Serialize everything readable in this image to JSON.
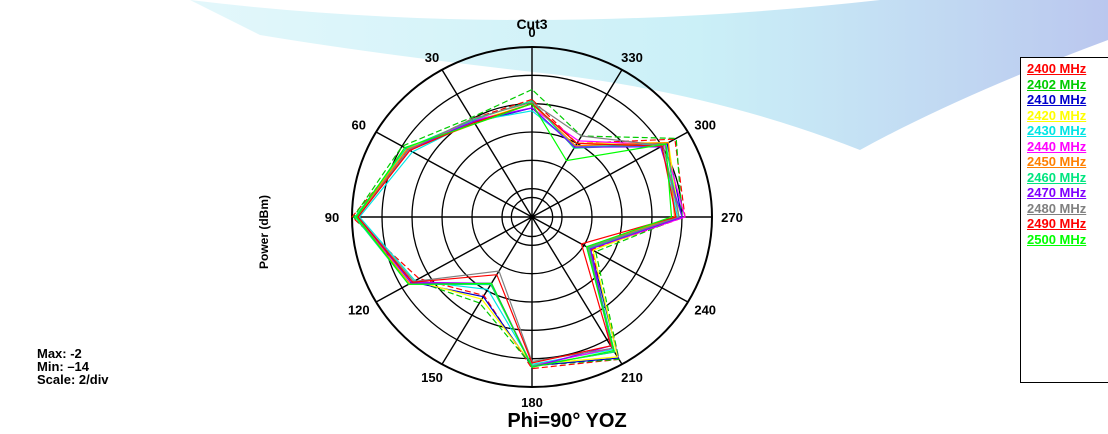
{
  "chart_data": {
    "type": "polar-line",
    "title": "Cut3",
    "subtitle": "Phi=90°  YOZ",
    "ylabel": "Power  (dBm)",
    "stats": {
      "max": "Max: -2",
      "min": "Min: –14",
      "scale": "Scale: 2/div"
    },
    "rlim": [
      -14,
      -2
    ],
    "scale_per_div": 2,
    "direction": "counterclockwise",
    "zero_location": "top",
    "angle_ticks": [
      "0",
      "30",
      "60",
      "90",
      "120",
      "150",
      "180",
      "210",
      "240",
      "270",
      "300",
      "330"
    ],
    "angle_tick_values": [
      0,
      30,
      60,
      90,
      120,
      150,
      180,
      210,
      240,
      270,
      300,
      330
    ],
    "grid": true,
    "legend_position": "right",
    "theta": [
      0,
      30,
      60,
      90,
      120,
      150,
      180,
      210,
      240,
      270,
      300,
      330
    ],
    "series": [
      {
        "name": "2400 MHz",
        "color": "#ff0000",
        "dashed": true,
        "values": [
          -5.7,
          -6.0,
          -4.5,
          -2.0,
          -5.3,
          -7.6,
          -3.3,
          -2.4,
          -9.4,
          -3.8,
          -3.0,
          -8.0
        ]
      },
      {
        "name": "2402 MHz",
        "color": "#00cc00",
        "dashed": true,
        "values": [
          -5.0,
          -5.9,
          -4.0,
          -2.1,
          -5.0,
          -7.0,
          -3.5,
          -2.4,
          -9.1,
          -4.0,
          -2.9,
          -7.4
        ]
      },
      {
        "name": "2410 MHz",
        "color": "#0000cc",
        "dashed": false,
        "values": [
          -6.3,
          -6.3,
          -4.4,
          -2.3,
          -4.8,
          -7.5,
          -3.5,
          -2.5,
          -9.5,
          -4.0,
          -3.6,
          -8.3
        ]
      },
      {
        "name": "2420 MHz",
        "color": "#ffff00",
        "dashed": false,
        "values": [
          -6.0,
          -6.2,
          -4.4,
          -2.2,
          -5.0,
          -7.3,
          -3.6,
          -2.6,
          -9.3,
          -4.2,
          -3.5,
          -8.0
        ]
      },
      {
        "name": "2430 MHz",
        "color": "#00e5e5",
        "dashed": false,
        "values": [
          -6.5,
          -6.2,
          -4.8,
          -2.5,
          -5.0,
          -8.1,
          -3.6,
          -3.2,
          -9.8,
          -4.3,
          -4.0,
          -8.2
        ]
      },
      {
        "name": "2440 MHz",
        "color": "#ff00ff",
        "dashed": false,
        "values": [
          -6.3,
          -6.1,
          -4.6,
          -2.3,
          -4.8,
          -8.6,
          -3.5,
          -3.3,
          -9.5,
          -3.8,
          -3.8,
          -7.8
        ]
      },
      {
        "name": "2450 MHz",
        "color": "#ff8000",
        "dashed": false,
        "values": [
          -6.0,
          -6.4,
          -4.4,
          -2.3,
          -4.6,
          -8.5,
          -3.5,
          -3.0,
          -9.7,
          -4.5,
          -3.5,
          -8.2
        ]
      },
      {
        "name": "2460 MHz",
        "color": "#00e57f",
        "dashed": false,
        "values": [
          -5.8,
          -6.1,
          -4.3,
          -2.2,
          -4.5,
          -8.5,
          -3.5,
          -3.0,
          -9.6,
          -4.2,
          -3.7,
          -8.4
        ]
      },
      {
        "name": "2470 MHz",
        "color": "#8000ff",
        "dashed": false,
        "values": [
          -6.3,
          -6.2,
          -4.5,
          -2.4,
          -4.7,
          -8.6,
          -3.4,
          -3.5,
          -9.5,
          -4.0,
          -4.1,
          -8.3
        ]
      },
      {
        "name": "2480 MHz",
        "color": "#808080",
        "dashed": false,
        "values": [
          -5.9,
          -6.0,
          -4.5,
          -2.4,
          -4.9,
          -9.6,
          -3.8,
          -3.3,
          -9.7,
          -4.2,
          -3.9,
          -7.4
        ]
      },
      {
        "name": "2490 MHz",
        "color": "#ff0000",
        "dashed": false,
        "values": [
          -6.0,
          -6.3,
          -4.6,
          -2.4,
          -4.8,
          -9.3,
          -3.7,
          -3.5,
          -10.2,
          -4.4,
          -4.0,
          -8.0
        ]
      },
      {
        "name": "2500 MHz",
        "color": "#00ff00",
        "dashed": false,
        "values": [
          -6.0,
          -6.4,
          -4.2,
          -2.3,
          -4.5,
          -8.6,
          -3.4,
          -3.1,
          -9.8,
          -4.7,
          -3.7,
          -9.4
        ]
      }
    ]
  }
}
